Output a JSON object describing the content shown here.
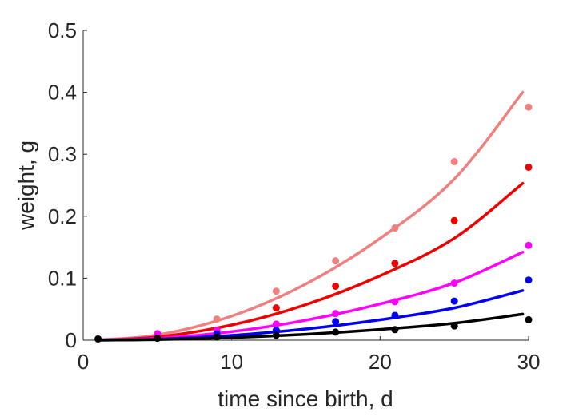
{
  "chart_data": {
    "type": "scatter",
    "xlabel": "time since birth, d",
    "ylabel": "weight, g",
    "xlim": [
      0,
      30
    ],
    "ylim": [
      0,
      0.5
    ],
    "xticks": [
      0,
      10,
      20,
      30
    ],
    "xtick_labels": [
      "0",
      "10",
      "20",
      "30"
    ],
    "yticks": [
      0,
      0.1,
      0.2,
      0.3,
      0.4,
      0.5
    ],
    "ytick_labels": [
      "0",
      "0.1",
      "0.2",
      "0.3",
      "0.4",
      "0.5"
    ],
    "grid": false,
    "legend": "none",
    "series": [
      {
        "color": "#f08080",
        "points_x": [
          1,
          5,
          9,
          13,
          17,
          21,
          25,
          30
        ],
        "points_y": [
          0.002,
          0.011,
          0.034,
          0.079,
          0.128,
          0.181,
          0.288,
          0.376
        ],
        "fit_x": [
          1,
          5,
          10,
          15,
          20,
          25,
          29.6
        ],
        "fit_y": [
          0.0005,
          0.0084,
          0.0388,
          0.0906,
          0.1642,
          0.2602,
          0.4
        ]
      },
      {
        "color": "#ee0000",
        "points_x": [
          13,
          17,
          21,
          25,
          30
        ],
        "points_y": [
          0.052,
          0.087,
          0.124,
          0.193,
          0.279
        ],
        "fit_x": [
          1,
          5,
          10,
          15,
          20,
          25,
          29.6
        ],
        "fit_y": [
          0.0003,
          0.0053,
          0.0245,
          0.0573,
          0.1038,
          0.1645,
          0.253
        ]
      },
      {
        "color": "#ff00ff",
        "points_x": [
          5,
          9,
          13,
          17,
          21,
          25,
          30
        ],
        "points_y": [
          0.01,
          0.016,
          0.026,
          0.043,
          0.062,
          0.092,
          0.153
        ],
        "fit_x": [
          1,
          5,
          10,
          15,
          20,
          25,
          29.6
        ],
        "fit_y": [
          0.0002,
          0.003,
          0.0138,
          0.0322,
          0.0584,
          0.0925,
          0.142
        ]
      },
      {
        "color": "#0000ee",
        "points_x": [
          9,
          13,
          17,
          21,
          25,
          30
        ],
        "points_y": [
          0.01,
          0.016,
          0.03,
          0.04,
          0.063,
          0.097
        ],
        "fit_x": [
          1,
          5,
          10,
          15,
          20,
          25,
          29.6
        ],
        "fit_y": [
          0.0001,
          0.0017,
          0.0077,
          0.0181,
          0.0328,
          0.0521,
          0.08
        ]
      },
      {
        "color": "#000000",
        "points_x": [
          1,
          5,
          9,
          13,
          17,
          21,
          25,
          30
        ],
        "points_y": [
          0.002,
          0.003,
          0.005,
          0.008,
          0.013,
          0.017,
          0.023,
          0.033
        ],
        "fit_x": [
          1,
          5,
          10,
          15,
          20,
          25,
          29.6
        ],
        "fit_y": [
          0.0001,
          0.0009,
          0.0041,
          0.0095,
          0.0173,
          0.0274,
          0.042
        ]
      }
    ]
  }
}
